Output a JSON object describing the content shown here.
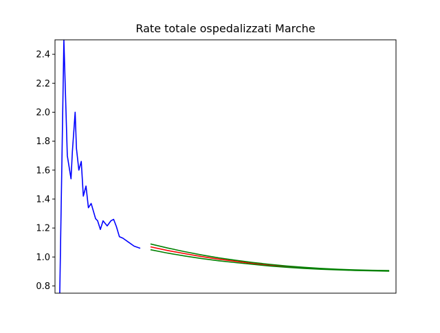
{
  "chart_data": {
    "type": "line",
    "title": "Rate totale ospedalizzati Marche",
    "xlabel": "",
    "ylabel": "",
    "ylim": [
      0.75,
      2.5
    ],
    "xlim": [
      0,
      100
    ],
    "grid": false,
    "x_ticks_visible": false,
    "y_ticks": [
      0.8,
      1.0,
      1.2,
      1.4,
      1.6,
      1.8,
      2.0,
      2.2,
      2.4
    ],
    "y_tick_labels": [
      "0.8",
      "1.0",
      "1.2",
      "1.4",
      "1.6",
      "1.8",
      "2.0",
      "2.2",
      "2.4"
    ],
    "series": [
      {
        "role": "observed",
        "color": "#0000ff",
        "x": [
          1.4,
          2.4,
          2.6,
          3.6,
          4.7,
          5.1,
          5.9,
          6.3,
          7.0,
          7.7,
          8.3,
          9.1,
          9.8,
          10.6,
          11.9,
          12.5,
          13.3,
          14.1,
          15.3,
          16.4,
          17.2,
          18.0,
          18.9,
          19.9,
          21.7,
          23.2,
          25.0
        ],
        "y": [
          0.74,
          2.2,
          2.5,
          1.7,
          1.54,
          1.73,
          2.0,
          1.75,
          1.6,
          1.66,
          1.42,
          1.49,
          1.34,
          1.37,
          1.265,
          1.25,
          1.19,
          1.25,
          1.215,
          1.25,
          1.26,
          1.21,
          1.14,
          1.13,
          1.1,
          1.075,
          1.06
        ]
      },
      {
        "role": "forecast",
        "color": "#ff0000",
        "x": [
          28,
          33,
          38,
          43,
          48,
          53,
          58,
          63,
          68,
          73,
          78,
          83,
          88,
          93,
          98
        ],
        "y": [
          1.07,
          1.045,
          1.023,
          1.003,
          0.985,
          0.97,
          0.955,
          0.943,
          0.933,
          0.925,
          0.918,
          0.913,
          0.909,
          0.906,
          0.904
        ]
      },
      {
        "role": "forecast-upper",
        "color": "#008000",
        "x": [
          28,
          33,
          38,
          43,
          48,
          53,
          58,
          63,
          68,
          73,
          78,
          83,
          88,
          93,
          98
        ],
        "y": [
          1.09,
          1.062,
          1.037,
          1.014,
          0.994,
          0.977,
          0.962,
          0.949,
          0.938,
          0.929,
          0.921,
          0.915,
          0.911,
          0.908,
          0.906
        ]
      },
      {
        "role": "forecast-lower",
        "color": "#008000",
        "x": [
          28,
          33,
          38,
          43,
          48,
          53,
          58,
          63,
          68,
          73,
          78,
          83,
          88,
          93,
          98
        ],
        "y": [
          1.05,
          1.027,
          1.007,
          0.989,
          0.974,
          0.961,
          0.949,
          0.938,
          0.929,
          0.921,
          0.915,
          0.911,
          0.907,
          0.904,
          0.902
        ]
      }
    ]
  }
}
